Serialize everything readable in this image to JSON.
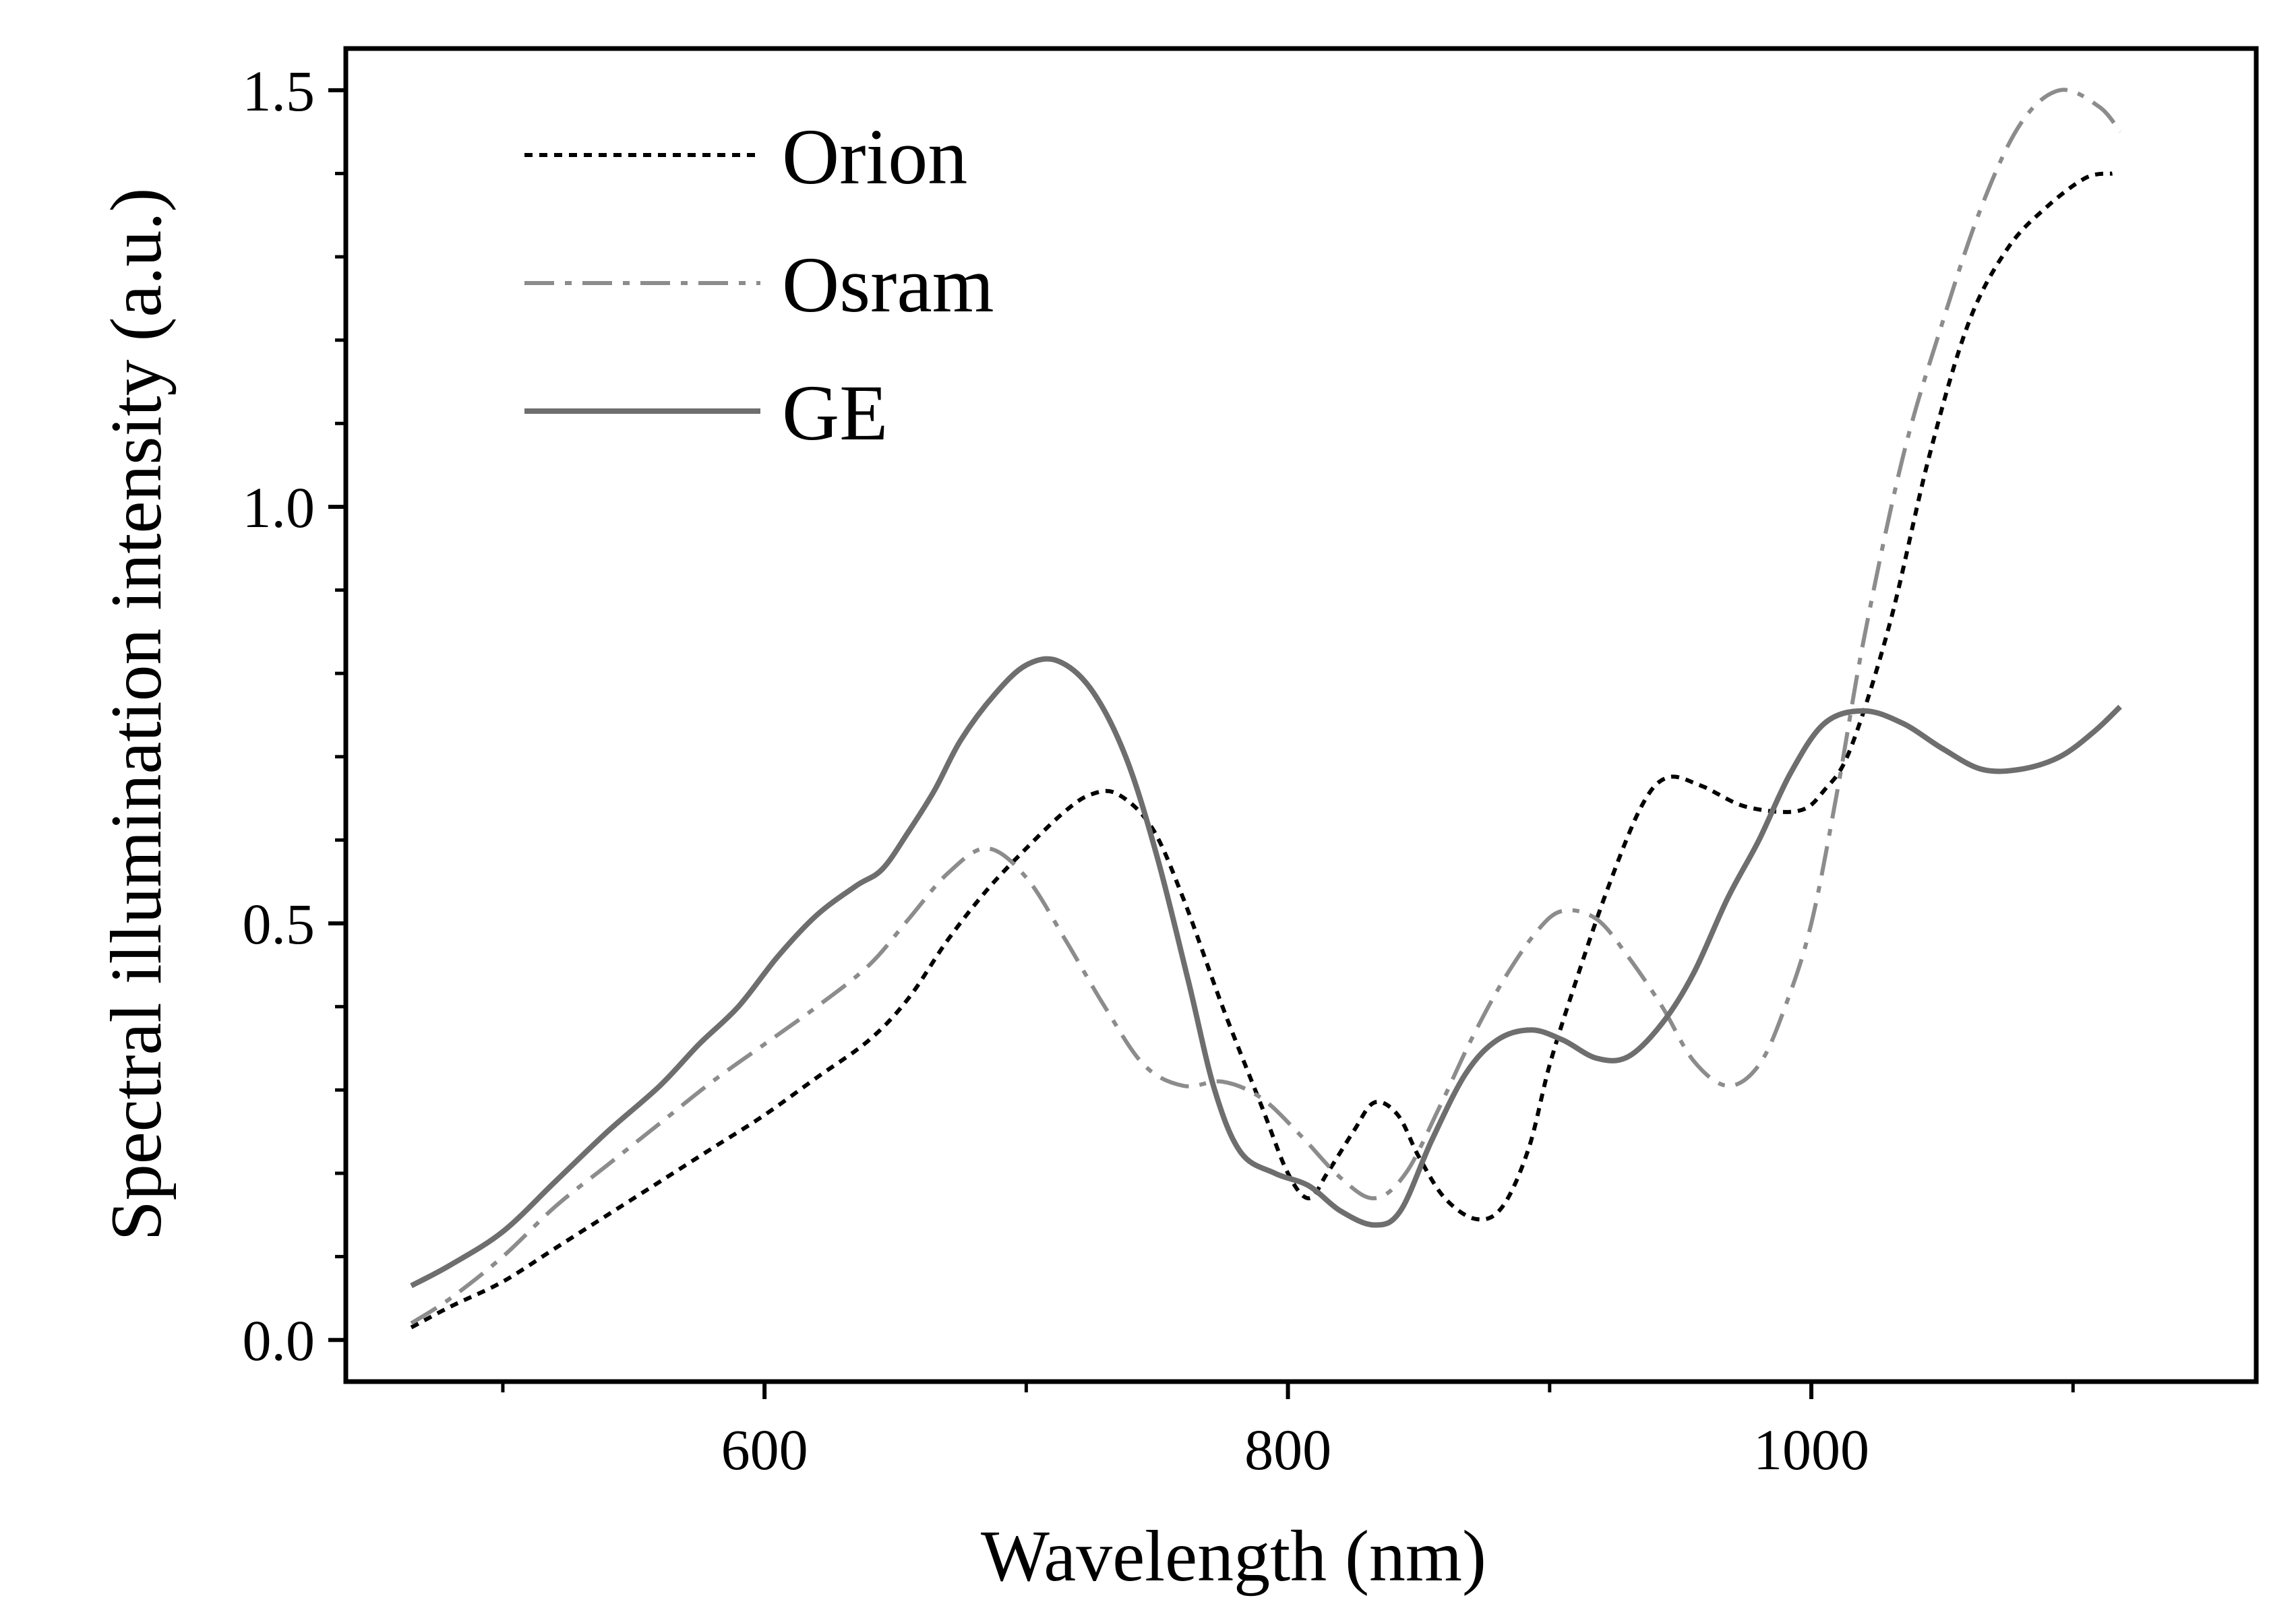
{
  "chart_data": {
    "type": "line",
    "title": "",
    "xlabel": "Wavelength (nm)",
    "ylabel": "Spectral illumination intensity (a.u.)",
    "xlim": [
      440,
      1170
    ],
    "ylim": [
      -0.05,
      1.55
    ],
    "x_ticks": [
      600,
      800,
      1000
    ],
    "x_tick_labels": [
      "600",
      "800",
      "1000"
    ],
    "x_minor_ticks": [
      500,
      700,
      900,
      1100
    ],
    "y_ticks": [
      0.0,
      0.5,
      1.0,
      1.5
    ],
    "y_tick_labels": [
      "0.0",
      "0.5",
      "1.0",
      "1.5"
    ],
    "y_minor_ticks": [
      0.1,
      0.2,
      0.3,
      0.4,
      0.6,
      0.7,
      0.8,
      0.9,
      1.1,
      1.2,
      1.3,
      1.4
    ],
    "grid": false,
    "legend_position": "top-left",
    "series": [
      {
        "name": "Orion",
        "color": "#000000",
        "style": "dotted",
        "points": [
          [
            465,
            0.015
          ],
          [
            480,
            0.04
          ],
          [
            500,
            0.07
          ],
          [
            520,
            0.11
          ],
          [
            540,
            0.15
          ],
          [
            560,
            0.19
          ],
          [
            580,
            0.23
          ],
          [
            600,
            0.27
          ],
          [
            620,
            0.315
          ],
          [
            640,
            0.36
          ],
          [
            655,
            0.41
          ],
          [
            670,
            0.48
          ],
          [
            685,
            0.54
          ],
          [
            700,
            0.59
          ],
          [
            715,
            0.635
          ],
          [
            725,
            0.655
          ],
          [
            735,
            0.655
          ],
          [
            748,
            0.615
          ],
          [
            760,
            0.53
          ],
          [
            775,
            0.4
          ],
          [
            790,
            0.28
          ],
          [
            800,
            0.2
          ],
          [
            808,
            0.17
          ],
          [
            815,
            0.2
          ],
          [
            825,
            0.25
          ],
          [
            833,
            0.285
          ],
          [
            842,
            0.27
          ],
          [
            850,
            0.22
          ],
          [
            860,
            0.17
          ],
          [
            872,
            0.145
          ],
          [
            882,
            0.16
          ],
          [
            892,
            0.23
          ],
          [
            900,
            0.33
          ],
          [
            910,
            0.43
          ],
          [
            922,
            0.54
          ],
          [
            935,
            0.64
          ],
          [
            945,
            0.675
          ],
          [
            958,
            0.665
          ],
          [
            975,
            0.64
          ],
          [
            995,
            0.635
          ],
          [
            1005,
            0.66
          ],
          [
            1015,
            0.71
          ],
          [
            1030,
            0.86
          ],
          [
            1045,
            1.06
          ],
          [
            1060,
            1.22
          ],
          [
            1075,
            1.31
          ],
          [
            1090,
            1.36
          ],
          [
            1105,
            1.395
          ],
          [
            1115,
            1.4
          ]
        ]
      },
      {
        "name": "Osram",
        "color": "#8c8c8c",
        "style": "dash-dot",
        "points": [
          [
            465,
            0.02
          ],
          [
            480,
            0.05
          ],
          [
            500,
            0.1
          ],
          [
            520,
            0.16
          ],
          [
            540,
            0.21
          ],
          [
            560,
            0.26
          ],
          [
            580,
            0.31
          ],
          [
            600,
            0.355
          ],
          [
            620,
            0.4
          ],
          [
            640,
            0.45
          ],
          [
            655,
            0.505
          ],
          [
            670,
            0.56
          ],
          [
            685,
            0.59
          ],
          [
            700,
            0.555
          ],
          [
            715,
            0.48
          ],
          [
            730,
            0.4
          ],
          [
            745,
            0.33
          ],
          [
            760,
            0.305
          ],
          [
            775,
            0.31
          ],
          [
            790,
            0.29
          ],
          [
            805,
            0.245
          ],
          [
            820,
            0.195
          ],
          [
            833,
            0.17
          ],
          [
            845,
            0.2
          ],
          [
            858,
            0.28
          ],
          [
            870,
            0.36
          ],
          [
            882,
            0.43
          ],
          [
            895,
            0.49
          ],
          [
            905,
            0.515
          ],
          [
            918,
            0.505
          ],
          [
            930,
            0.46
          ],
          [
            943,
            0.4
          ],
          [
            955,
            0.335
          ],
          [
            968,
            0.305
          ],
          [
            980,
            0.33
          ],
          [
            990,
            0.4
          ],
          [
            1000,
            0.5
          ],
          [
            1010,
            0.66
          ],
          [
            1020,
            0.84
          ],
          [
            1035,
            1.06
          ],
          [
            1050,
            1.22
          ],
          [
            1065,
            1.36
          ],
          [
            1080,
            1.46
          ],
          [
            1095,
            1.5
          ],
          [
            1110,
            1.48
          ],
          [
            1118,
            1.45
          ]
        ]
      },
      {
        "name": "GE",
        "color": "#6e6e6e",
        "style": "solid",
        "points": [
          [
            465,
            0.065
          ],
          [
            480,
            0.09
          ],
          [
            500,
            0.13
          ],
          [
            520,
            0.19
          ],
          [
            540,
            0.25
          ],
          [
            560,
            0.305
          ],
          [
            575,
            0.355
          ],
          [
            590,
            0.4
          ],
          [
            605,
            0.46
          ],
          [
            620,
            0.51
          ],
          [
            635,
            0.545
          ],
          [
            645,
            0.565
          ],
          [
            655,
            0.61
          ],
          [
            665,
            0.66
          ],
          [
            675,
            0.72
          ],
          [
            688,
            0.775
          ],
          [
            700,
            0.81
          ],
          [
            712,
            0.815
          ],
          [
            725,
            0.78
          ],
          [
            738,
            0.7
          ],
          [
            750,
            0.58
          ],
          [
            762,
            0.43
          ],
          [
            772,
            0.3
          ],
          [
            782,
            0.225
          ],
          [
            795,
            0.2
          ],
          [
            808,
            0.185
          ],
          [
            820,
            0.155
          ],
          [
            833,
            0.138
          ],
          [
            843,
            0.155
          ],
          [
            855,
            0.24
          ],
          [
            868,
            0.32
          ],
          [
            880,
            0.36
          ],
          [
            893,
            0.372
          ],
          [
            905,
            0.36
          ],
          [
            918,
            0.338
          ],
          [
            930,
            0.34
          ],
          [
            943,
            0.38
          ],
          [
            955,
            0.44
          ],
          [
            968,
            0.53
          ],
          [
            980,
            0.6
          ],
          [
            992,
            0.68
          ],
          [
            1005,
            0.74
          ],
          [
            1020,
            0.755
          ],
          [
            1035,
            0.74
          ],
          [
            1050,
            0.71
          ],
          [
            1065,
            0.685
          ],
          [
            1080,
            0.685
          ],
          [
            1095,
            0.7
          ],
          [
            1108,
            0.73
          ],
          [
            1118,
            0.76
          ]
        ]
      }
    ]
  }
}
